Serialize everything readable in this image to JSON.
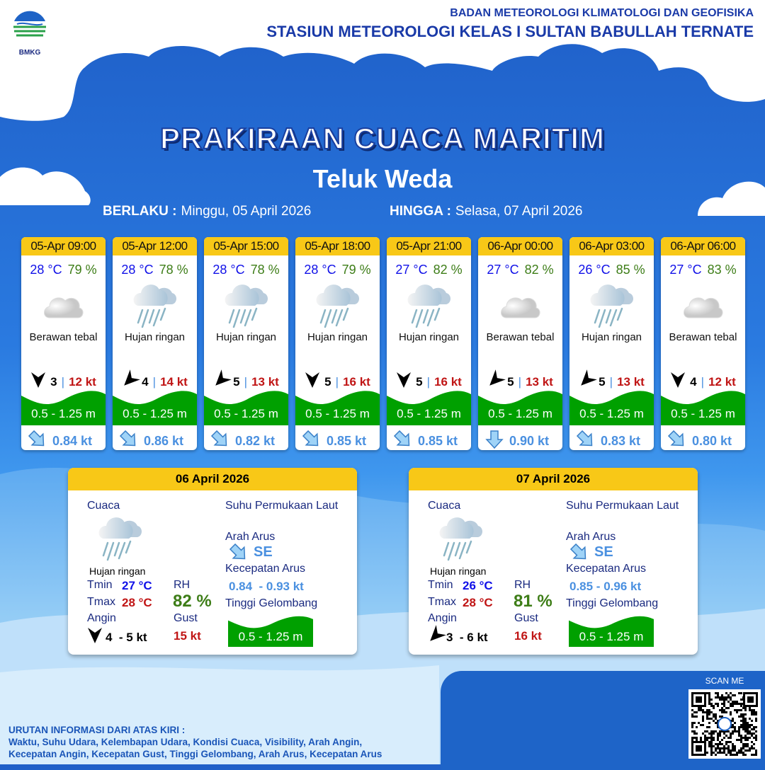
{
  "header": {
    "org": "BADAN METEOROLOGI KLIMATOLOGI DAN GEOFISIKA",
    "station": "STASIUN METEOROLOGI KELAS I SULTAN BABULLAH TERNATE",
    "logo_text": "BMKG"
  },
  "title": "PRAKIRAAN CUACA MARITIM",
  "location": "Teluk Weda",
  "validity": {
    "from_label": "BERLAKU :",
    "from": "Minggu, 05 April 2026",
    "to_label": "HINGGA :",
    "to": "Selasa, 07 April 2026"
  },
  "colors": {
    "header_yellow": "#f8c817",
    "wave_green": "#00a000",
    "temp_blue": "#1010e8",
    "rh_green": "#3d7d17",
    "gust_red": "#c01515",
    "current_blue": "#4a90e0"
  },
  "forecasts": [
    {
      "time": "05-Apr 09:00",
      "temp": "28 °C",
      "rh": "79 %",
      "icon": "cloudy-icon",
      "cond": "Berawan tebal",
      "wind_dir_deg": 0,
      "wind": "3",
      "gust": "12 kt",
      "wave": "0.5 - 1.25 m",
      "current_icon": "arrow-se",
      "current": "0.84 kt"
    },
    {
      "time": "05-Apr 12:00",
      "temp": "28 °C",
      "rh": "78 %",
      "icon": "rain-icon",
      "cond": "Hujan ringan",
      "wind_dir_deg": 45,
      "wind": "4",
      "gust": "14 kt",
      "wave": "0.5 - 1.25 m",
      "current_icon": "arrow-se",
      "current": "0.86 kt"
    },
    {
      "time": "05-Apr 15:00",
      "temp": "28 °C",
      "rh": "78 %",
      "icon": "rain-icon",
      "cond": "Hujan ringan",
      "wind_dir_deg": 45,
      "wind": "5",
      "gust": "13 kt",
      "wave": "0.5 - 1.25 m",
      "current_icon": "arrow-se",
      "current": "0.82 kt"
    },
    {
      "time": "05-Apr 18:00",
      "temp": "28 °C",
      "rh": "79 %",
      "icon": "rain-icon",
      "cond": "Hujan ringan",
      "wind_dir_deg": 0,
      "wind": "5",
      "gust": "16 kt",
      "wave": "0.5 - 1.25 m",
      "current_icon": "arrow-se",
      "current": "0.85 kt"
    },
    {
      "time": "05-Apr 21:00",
      "temp": "27 °C",
      "rh": "82 %",
      "icon": "rain-icon",
      "cond": "Hujan ringan",
      "wind_dir_deg": 0,
      "wind": "5",
      "gust": "16 kt",
      "wave": "0.5 - 1.25 m",
      "current_icon": "arrow-se",
      "current": "0.85 kt"
    },
    {
      "time": "06-Apr 00:00",
      "temp": "27 °C",
      "rh": "82 %",
      "icon": "cloudy-icon",
      "cond": "Berawan tebal",
      "wind_dir_deg": 45,
      "wind": "5",
      "gust": "13 kt",
      "wave": "0.5 - 1.25 m",
      "current_icon": "arrow-s",
      "current": "0.90 kt"
    },
    {
      "time": "06-Apr 03:00",
      "temp": "26 °C",
      "rh": "85 %",
      "icon": "rain-icon",
      "cond": "Hujan ringan",
      "wind_dir_deg": 45,
      "wind": "5",
      "gust": "13 kt",
      "wave": "0.5 - 1.25 m",
      "current_icon": "arrow-se",
      "current": "0.83 kt"
    },
    {
      "time": "06-Apr 06:00",
      "temp": "27 °C",
      "rh": "83 %",
      "icon": "cloudy-icon",
      "cond": "Berawan tebal",
      "wind_dir_deg": 0,
      "wind": "4",
      "gust": "12 kt",
      "wave": "0.5 - 1.25 m",
      "current_icon": "arrow-se",
      "current": "0.80 kt"
    }
  ],
  "labels": {
    "cuaca": "Cuaca",
    "sst": "Suhu Permukaan Laut",
    "arah": "Arah Arus",
    "kecepatan": "Kecepatan Arus",
    "tinggi": "Tinggi Gelombang",
    "tmin": "Tmin",
    "tmax": "Tmax",
    "rh": "RH",
    "angin": "Angin",
    "gust": "Gust"
  },
  "daily": [
    {
      "date": "06 April 2026",
      "cond": "Hujan ringan",
      "tmin": "27 °C",
      "tmax": "28 °C",
      "rh": "82 %",
      "wind_dir_deg": 0,
      "wind": "4  - 5 kt",
      "gust": "15 kt",
      "arah": "SE",
      "kecepatan": "0.84  - 0.93 kt",
      "wave": "0.5 - 1.25 m"
    },
    {
      "date": "07 April 2026",
      "cond": "Hujan ringan",
      "tmin": "26 °C",
      "tmax": "28 °C",
      "rh": "81 %",
      "wind_dir_deg": 45,
      "wind": "3  - 6 kt",
      "gust": "16 kt",
      "arah": "SE",
      "kecepatan": "0.85 - 0.96 kt",
      "wave": "0.5 - 1.25 m"
    }
  ],
  "qr": {
    "label": "SCAN ME"
  },
  "footer": {
    "line1": "URUTAN INFORMASI DARI ATAS KIRI :",
    "line2": "Waktu, Suhu Udara, Kelembapan Udara, Kondisi Cuaca, Visibility, Arah Angin,",
    "line3": "Kecepatan Angin, Kecepatan Gust, Tinggi Gelombang, Arah Arus, Kecepatan Arus"
  }
}
